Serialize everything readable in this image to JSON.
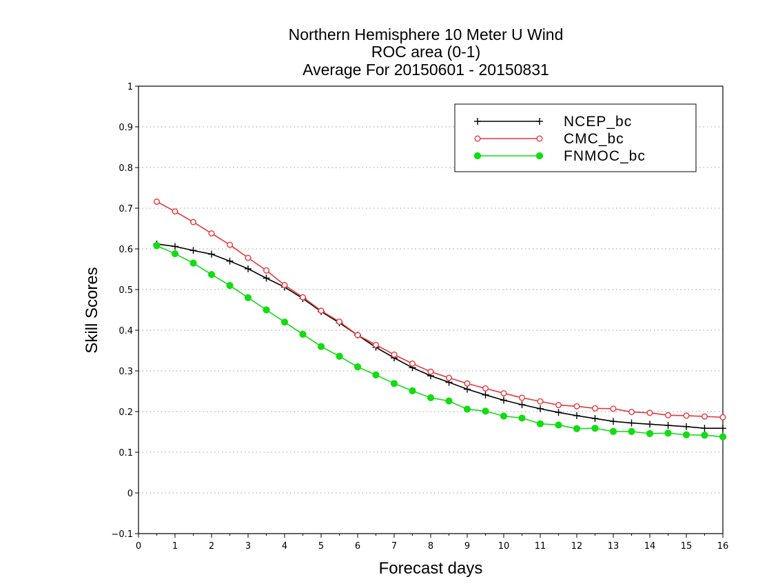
{
  "chart_data": {
    "type": "line",
    "title_lines": [
      "Northern Hemisphere 10 Meter U Wind",
      "ROC area (0-1)",
      "Average For 20150601 - 20150831"
    ],
    "xlabel": "Forecast days",
    "ylabel": "Skill Scores",
    "xlim": [
      0,
      16
    ],
    "ylim": [
      -0.1,
      1
    ],
    "x_ticks": [
      "0",
      "1",
      "2",
      "3",
      "4",
      "5",
      "6",
      "7",
      "8",
      "9",
      "10",
      "11",
      "12",
      "13",
      "14",
      "15",
      "16"
    ],
    "y_ticks": [
      "−0.1",
      "0",
      "0.1",
      "0.2",
      "0.3",
      "0.4",
      "0.5",
      "0.6",
      "0.7",
      "0.8",
      "0.9",
      "1"
    ],
    "grid": "horizontal dotted",
    "legend_position": "top-right",
    "x": [
      0.5,
      1,
      1.5,
      2,
      2.5,
      3,
      3.5,
      4,
      4.5,
      5,
      5.5,
      6,
      6.5,
      7,
      7.5,
      8,
      8.5,
      9,
      9.5,
      10,
      10.5,
      11,
      11.5,
      12,
      12.5,
      13,
      13.5,
      14,
      14.5,
      15,
      15.5,
      16
    ],
    "series": [
      {
        "name": "NCEP_bc",
        "color": "#000000",
        "marker": "plus",
        "values": [
          0.612,
          0.606,
          0.596,
          0.587,
          0.57,
          0.551,
          0.528,
          0.506,
          0.478,
          0.446,
          0.418,
          0.388,
          0.358,
          0.332,
          0.308,
          0.288,
          0.272,
          0.255,
          0.241,
          0.228,
          0.217,
          0.207,
          0.198,
          0.19,
          0.183,
          0.176,
          0.172,
          0.169,
          0.166,
          0.163,
          0.159,
          0.159
        ]
      },
      {
        "name": "CMC_bc",
        "color": "#e8363a",
        "marker": "open-circle",
        "values": [
          0.716,
          0.692,
          0.666,
          0.638,
          0.61,
          0.578,
          0.547,
          0.511,
          0.481,
          0.448,
          0.421,
          0.388,
          0.364,
          0.34,
          0.318,
          0.298,
          0.283,
          0.269,
          0.257,
          0.245,
          0.234,
          0.225,
          0.216,
          0.213,
          0.208,
          0.207,
          0.199,
          0.197,
          0.191,
          0.19,
          0.188,
          0.186
        ]
      },
      {
        "name": "FNMOC_bc",
        "color": "#11dd11",
        "marker": "filled-circle",
        "values": [
          0.608,
          0.588,
          0.565,
          0.537,
          0.51,
          0.48,
          0.45,
          0.42,
          0.39,
          0.36,
          0.336,
          0.31,
          0.29,
          0.269,
          0.251,
          0.234,
          0.226,
          0.206,
          0.201,
          0.189,
          0.184,
          0.17,
          0.167,
          0.158,
          0.159,
          0.151,
          0.151,
          0.146,
          0.147,
          0.143,
          0.142,
          0.138
        ]
      }
    ]
  }
}
